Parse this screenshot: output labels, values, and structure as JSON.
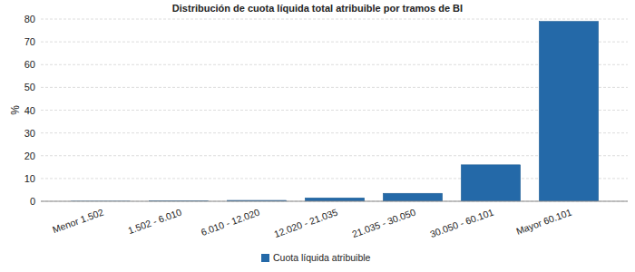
{
  "chart_data": {
    "type": "bar",
    "title": "Distribución de cuota líquida total atribuible por tramos de BI",
    "y_label": "%",
    "categories": [
      "Menor 1.502",
      "1.502 - 6.010",
      "6.010 - 12.020",
      "12.020 - 21.035",
      "21.035 - 30.050",
      "30.050 - 60.101",
      "Mayor 60.101"
    ],
    "series": [
      {
        "name": "Cuota líquida atribuible",
        "color": "#2469a8",
        "values": [
          0.05,
          0.1,
          0.4,
          1.5,
          3.5,
          16,
          79
        ]
      }
    ],
    "ylim": [
      0,
      80
    ],
    "yticks": [
      0,
      10,
      20,
      30,
      40,
      50,
      60,
      70,
      80
    ],
    "grid": true,
    "legend": "bottom"
  }
}
